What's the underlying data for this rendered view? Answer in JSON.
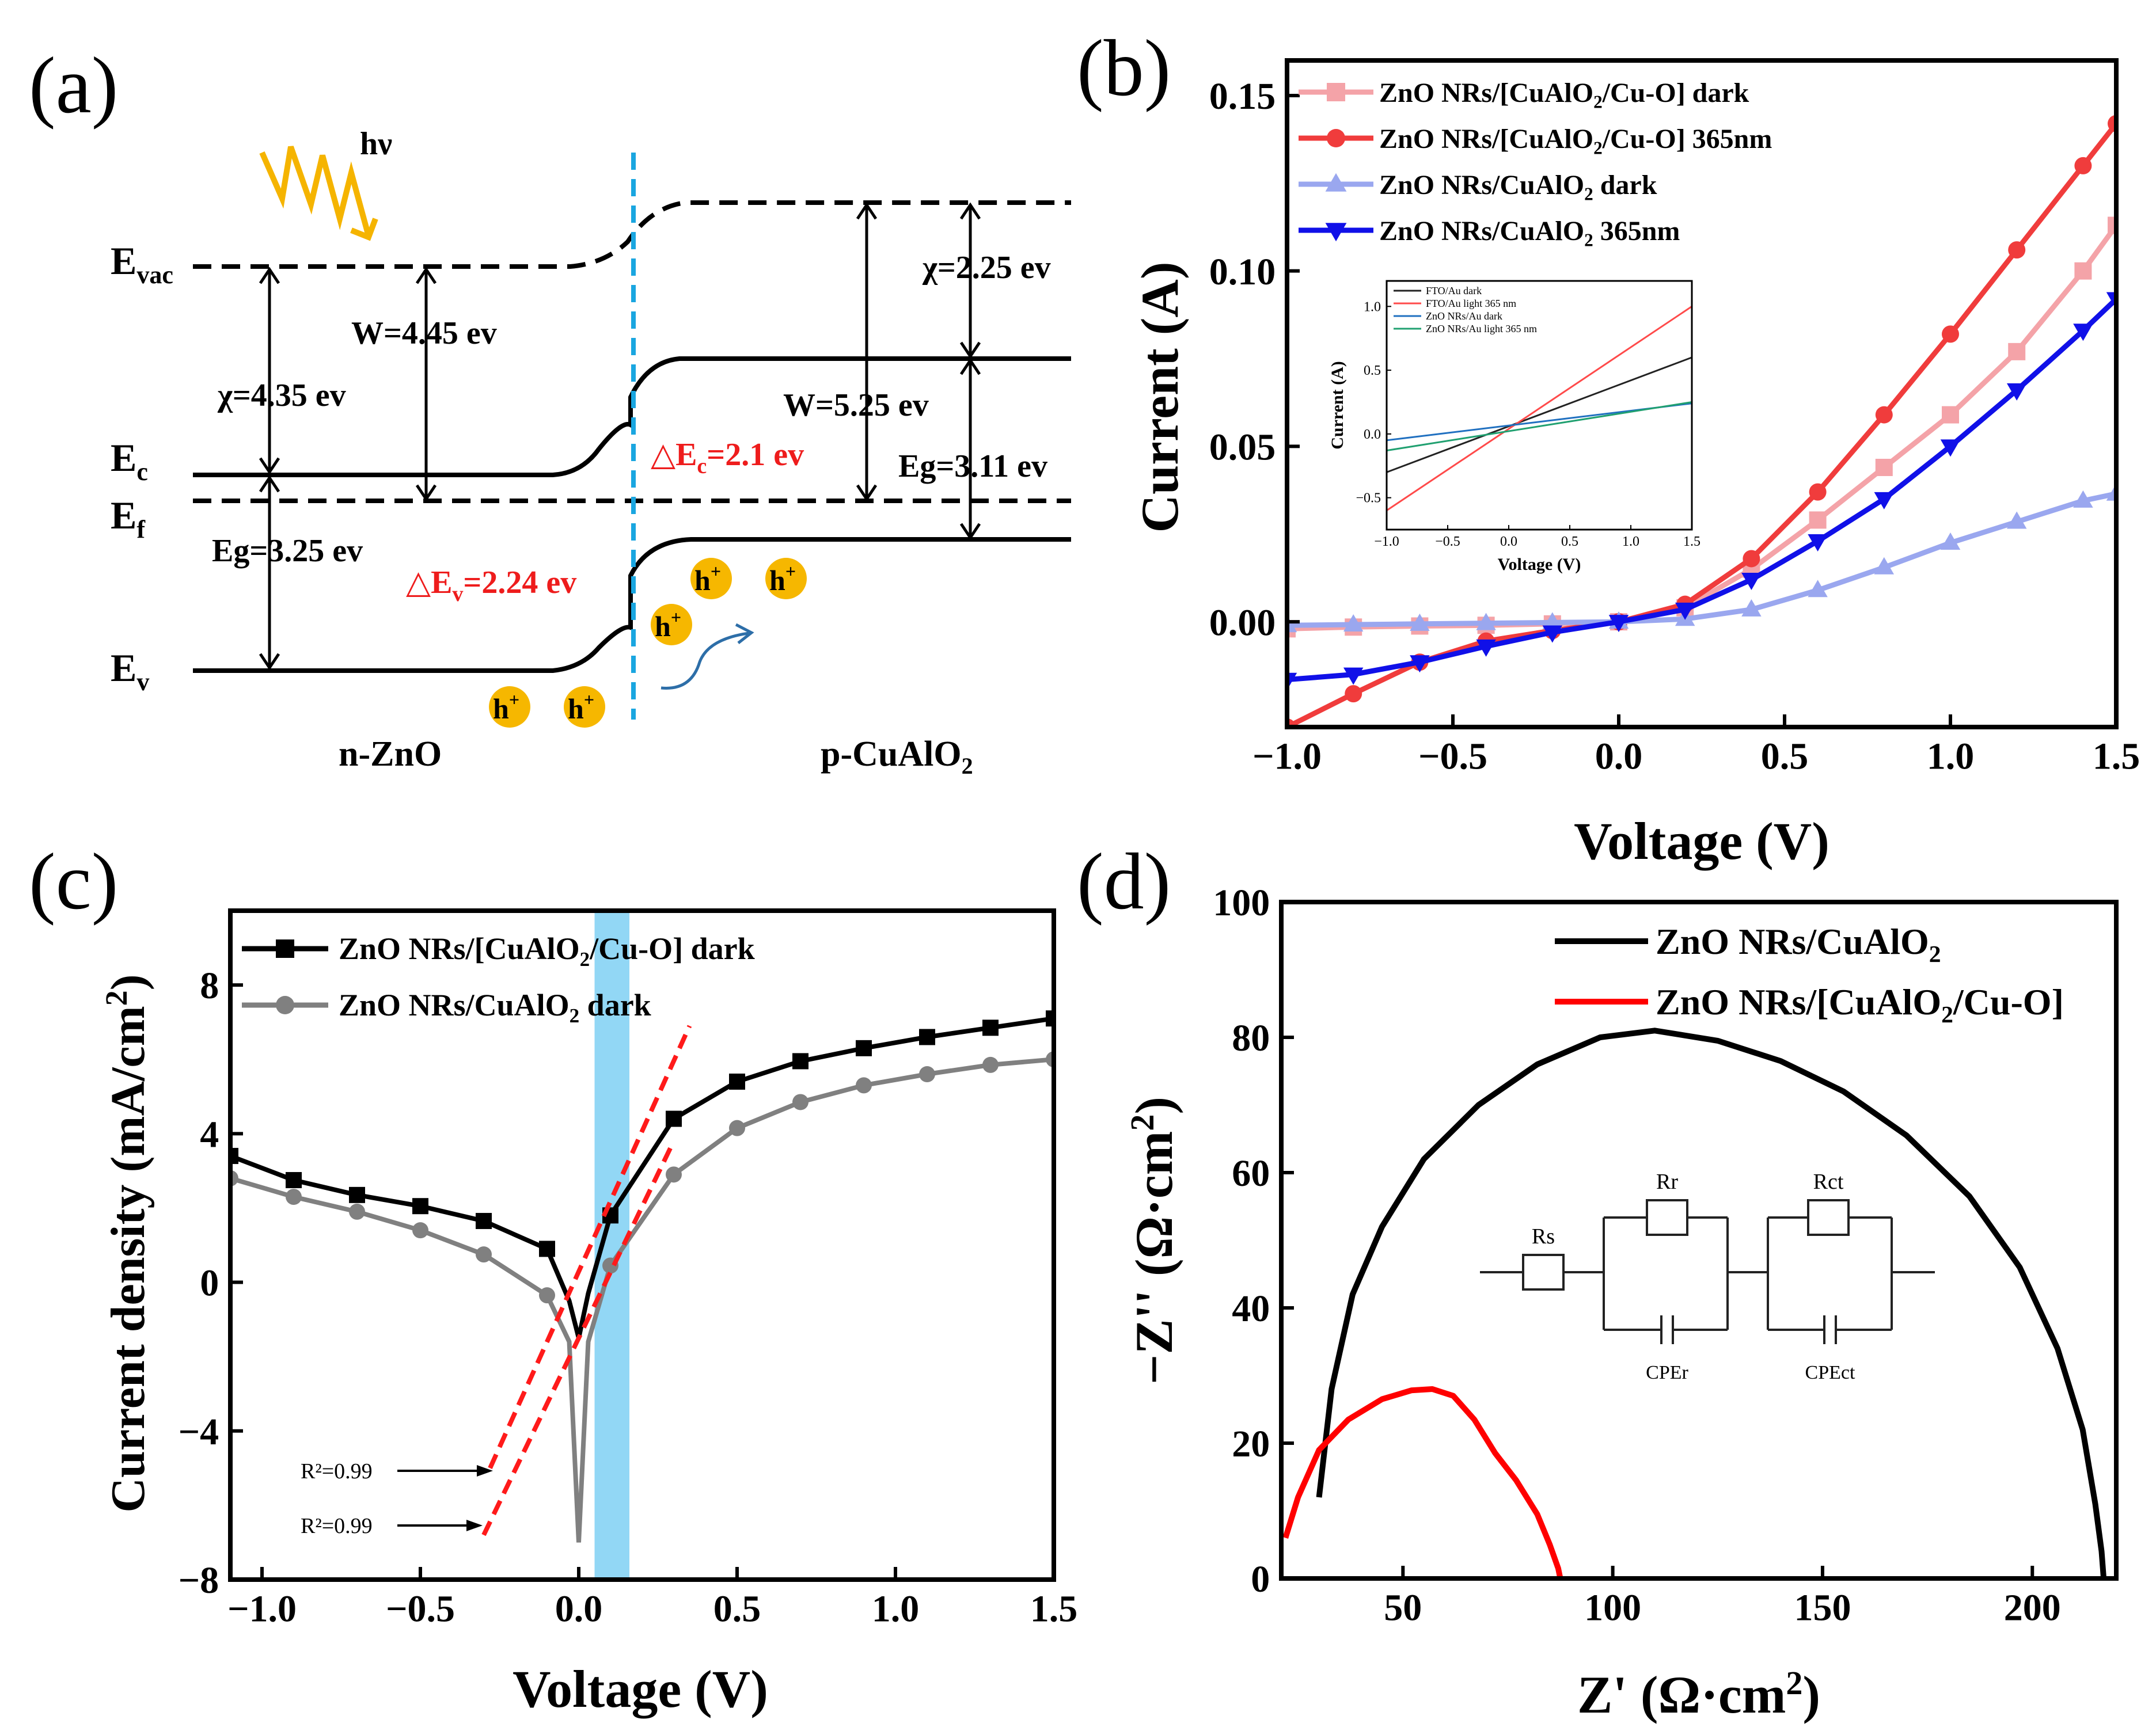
{
  "figure": {
    "panel_labels": {
      "a": "(a)",
      "b": "(b)",
      "c": "(c)",
      "d": "(d)"
    }
  },
  "band_diagram": {
    "light": "hν",
    "e_vac": {
      "main": "E",
      "sub": "vac"
    },
    "e_c": {
      "main": "E",
      "sub": "c"
    },
    "e_f": {
      "main": "E",
      "sub": "f"
    },
    "e_v": {
      "main": "E",
      "sub": "v"
    },
    "w_left": "W=4.45 ev",
    "chi_left": "χ=4.35 ev",
    "eg_left": "Eg=3.25 ev",
    "chi_right": "χ=2.25 ev",
    "w_right": "W=5.25 ev",
    "eg_right": "Eg=3.11 ev",
    "delta_ec": {
      "pre": "△E",
      "sub": "c",
      "post": "=2.1 ev"
    },
    "delta_ev": {
      "pre": "△E",
      "sub": "v",
      "post": "=2.24 ev"
    },
    "hole_label": {
      "main": "h",
      "sup": "+"
    },
    "n_side": "n-ZnO",
    "p_side": {
      "pre": "p-CuAlO",
      "sub": "2"
    }
  },
  "chart_data": [
    {
      "panel": "b",
      "type": "line",
      "xlabel": "Voltage (V)",
      "ylabel": "Current (A)",
      "xlim": [
        -1.0,
        1.5
      ],
      "ylim": [
        -0.03,
        0.16
      ],
      "xticks": [
        "−1.0",
        "−0.5",
        "0.0",
        "0.5",
        "1.0",
        "1.5"
      ],
      "yticks": [
        "0.00",
        "0.05",
        "0.10",
        "0.15"
      ],
      "x": [
        -1.0,
        -0.8,
        -0.6,
        -0.4,
        -0.2,
        0.0,
        0.2,
        0.4,
        0.6,
        0.8,
        1.0,
        1.2,
        1.4,
        1.5
      ],
      "series": [
        {
          "name": "ZnO NRs/[CuAlO2/Cu-O] dark",
          "legend": {
            "pre": "ZnO NRs/[CuAlO",
            "sub": "2",
            "post": "/Cu-O] dark"
          },
          "color": "#f4a3a8",
          "marker": "square",
          "values": [
            -0.002,
            -0.0015,
            -0.0012,
            -0.001,
            -0.0006,
            0.0,
            0.004,
            0.015,
            0.029,
            0.044,
            0.059,
            0.077,
            0.1,
            0.113
          ]
        },
        {
          "name": "ZnO NRs/[CuAlO2/Cu-O] 365nm",
          "legend": {
            "pre": "ZnO NRs/[CuAlO",
            "sub": "2",
            "post": "/Cu-O] 365nm"
          },
          "color": "#f03c3c",
          "marker": "circle",
          "values": [
            -0.03,
            -0.0205,
            -0.0115,
            -0.0055,
            -0.0025,
            0.0,
            0.005,
            0.018,
            0.037,
            0.059,
            0.082,
            0.106,
            0.13,
            0.142
          ]
        },
        {
          "name": "ZnO NRs/CuAlO2 dark",
          "legend": {
            "pre": "ZnO NRs/CuAlO",
            "sub": "2",
            "post": " dark"
          },
          "color": "#9aa7ef",
          "marker": "triangle-up",
          "values": [
            -0.001,
            -0.0008,
            -0.0006,
            -0.0004,
            -0.0002,
            0.0,
            0.0008,
            0.0035,
            0.009,
            0.0155,
            0.0225,
            0.0285,
            0.0345,
            0.0365
          ]
        },
        {
          "name": "ZnO NRs/CuAlO2 365nm",
          "legend": {
            "pre": "ZnO NRs/CuAlO",
            "sub": "2",
            "post": " 365nm"
          },
          "color": "#1010e8",
          "marker": "triangle-down",
          "values": [
            -0.0165,
            -0.015,
            -0.0115,
            -0.007,
            -0.003,
            0.0,
            0.0035,
            0.012,
            0.023,
            0.035,
            0.05,
            0.066,
            0.083,
            0.092
          ]
        }
      ],
      "inset": {
        "type": "line",
        "xlabel": "Voltage (V)",
        "ylabel": "Current (A)",
        "xlim": [
          -1.0,
          1.5
        ],
        "ylim": [
          -0.75,
          1.2
        ],
        "xticks": [
          "−1.0",
          "−0.5",
          "0.0",
          "0.5",
          "1.0",
          "1.5"
        ],
        "yticks": [
          "−0.5",
          "0.0",
          "0.5",
          "1.0"
        ],
        "series": [
          {
            "name": "FTO/Au dark",
            "color": "#222222",
            "x": [
              -1.0,
              1.5
            ],
            "values": [
              -0.3,
              0.6
            ]
          },
          {
            "name": "FTO/Au light 365 nm",
            "color": "#ff4a4a",
            "x": [
              -1.0,
              1.5
            ],
            "values": [
              -0.6,
              1.0
            ]
          },
          {
            "name": "ZnO NRs/Au dark",
            "color": "#2070c0",
            "x": [
              -1.0,
              1.5
            ],
            "values": [
              -0.05,
              0.24
            ]
          },
          {
            "name": "ZnO NRs/Au light 365 nm",
            "color": "#20a070",
            "x": [
              -1.0,
              1.5
            ],
            "values": [
              -0.13,
              0.25
            ]
          }
        ]
      }
    },
    {
      "panel": "c",
      "type": "line",
      "xlabel": "Voltage (V)",
      "ylabel": {
        "pre": "Current density (mA/cm",
        "sup": "2",
        "post": ")"
      },
      "xlim": [
        -1.1,
        1.5
      ],
      "ylim": [
        -8,
        10
      ],
      "xticks": [
        "−1.0",
        "−0.5",
        "0.0",
        "0.5",
        "1.0",
        "1.5"
      ],
      "yticks": [
        "−8",
        "−4",
        "0",
        "4",
        "8"
      ],
      "highlight_band": [
        0.05,
        0.16
      ],
      "series": [
        {
          "name": "ZnO NRs/[CuAlO2/Cu-O] dark",
          "legend": {
            "pre": "ZnO NRs/[CuAlO",
            "sub": "2",
            "post": "/Cu-O] dark"
          },
          "color": "#000000",
          "marker": "square",
          "x": [
            -1.1,
            -0.9,
            -0.7,
            -0.5,
            -0.3,
            -0.1,
            -0.03,
            0.0,
            0.03,
            0.1,
            0.3,
            0.5,
            0.7,
            0.9,
            1.1,
            1.3,
            1.5
          ],
          "values": [
            3.4,
            2.75,
            2.35,
            2.05,
            1.65,
            0.9,
            -0.5,
            -1.5,
            -0.3,
            1.8,
            4.4,
            5.4,
            5.95,
            6.3,
            6.6,
            6.85,
            7.1
          ]
        },
        {
          "name": "ZnO NRs/CuAlO2 dark",
          "legend": {
            "pre": "ZnO NRs/CuAlO",
            "sub": "2",
            "post": " dark"
          },
          "color": "#808080",
          "marker": "circle",
          "x": [
            -1.1,
            -0.9,
            -0.7,
            -0.5,
            -0.3,
            -0.1,
            -0.03,
            0.0,
            0.03,
            0.1,
            0.3,
            0.5,
            0.7,
            0.9,
            1.1,
            1.3,
            1.5
          ],
          "values": [
            2.8,
            2.3,
            1.9,
            1.4,
            0.75,
            -0.35,
            -1.6,
            -7.0,
            -1.6,
            0.45,
            2.9,
            4.15,
            4.85,
            5.3,
            5.6,
            5.85,
            6.0
          ]
        }
      ],
      "fit_lines": [
        {
          "label": "R²=0.99",
          "x": [
            -0.28,
            0.35
          ],
          "values": [
            -5.0,
            6.9
          ]
        },
        {
          "label": "R²=0.99",
          "x": [
            -0.3,
            0.3
          ],
          "values": [
            -6.8,
            3.8
          ]
        }
      ]
    },
    {
      "panel": "d",
      "type": "line",
      "xlabel": {
        "pre": "Z' (Ω·cm",
        "sup": "2",
        "post": ")"
      },
      "ylabel": {
        "pre": "−Z'' (Ω·cm",
        "sup": "2",
        "post": ")"
      },
      "xlim": [
        21,
        220
      ],
      "ylim": [
        0,
        100
      ],
      "xticks": [
        "50",
        "100",
        "150",
        "200"
      ],
      "yticks": [
        "0",
        "20",
        "40",
        "60",
        "80",
        "100"
      ],
      "series": [
        {
          "name": "ZnO NRs/CuAlO2",
          "legend": {
            "pre": "ZnO NRs/CuAlO",
            "sub": "2",
            "post": ""
          },
          "color": "#000000",
          "x": [
            30,
            33,
            38,
            45,
            55,
            68,
            82,
            97,
            110,
            125,
            140,
            155,
            170,
            185,
            197,
            206,
            212,
            215,
            216.5,
            217
          ],
          "values": [
            12,
            28,
            42,
            52,
            62,
            70,
            76,
            80,
            81,
            79.5,
            76.5,
            72,
            65.5,
            56.5,
            46,
            34,
            22,
            11,
            4,
            0
          ]
        },
        {
          "name": "ZnO NRs/[CuAlO2/Cu-O]",
          "legend": {
            "pre": "ZnO NRs/[CuAlO",
            "sub": "2",
            "post": "/Cu-O]"
          },
          "color": "#ff0000",
          "x": [
            22,
            25,
            30,
            37,
            45,
            52,
            57,
            62,
            67,
            72,
            77,
            82,
            85,
            87,
            87.5
          ],
          "values": [
            6,
            12,
            19,
            23.5,
            26.5,
            27.8,
            28,
            27,
            23.5,
            18.5,
            14.5,
            9.5,
            5,
            1.5,
            0
          ]
        }
      ],
      "circuit": {
        "rs": "Rs",
        "rr": "Rr",
        "rct": "Rct",
        "cper": "CPEr",
        "cpect": "CPEct"
      }
    }
  ]
}
